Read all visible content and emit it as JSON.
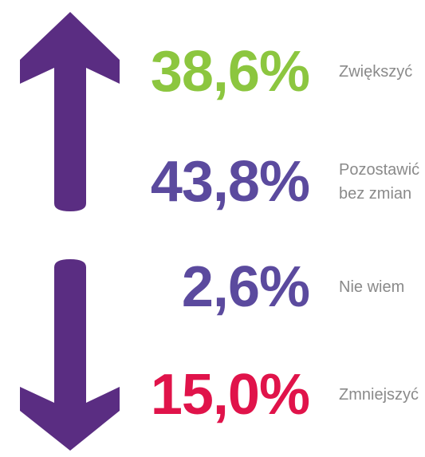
{
  "items": [
    {
      "value": "38,6%",
      "label": "Zwiększyć",
      "color": "#8cc63f"
    },
    {
      "value": "43,8%",
      "label": "Pozostawić bez zmian",
      "color": "#5b4a9e"
    },
    {
      "value": "2,6%",
      "label": "Nie wiem",
      "color": "#5b4a9e"
    },
    {
      "value": "15,0%",
      "label": "Zmniejszyć",
      "color": "#e0134a"
    }
  ]
}
